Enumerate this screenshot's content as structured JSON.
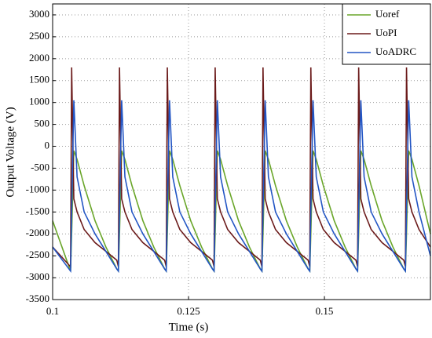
{
  "chart_data": {
    "type": "line",
    "xlabel": "Time (s)",
    "ylabel": "Output Voltage (V)",
    "x": [
      0.1,
      0.1033,
      0.1035,
      0.1039,
      0.1045,
      0.1058,
      0.1078,
      0.1098,
      0.1118,
      0.1121,
      0.1123,
      0.1127,
      0.1133,
      0.1146,
      0.1166,
      0.1186,
      0.1206,
      0.1209,
      0.1211,
      0.1215,
      0.1221,
      0.1234,
      0.1254,
      0.1274,
      0.1294,
      0.1297,
      0.1299,
      0.1303,
      0.1309,
      0.1322,
      0.1342,
      0.1362,
      0.1382,
      0.1385,
      0.1387,
      0.1391,
      0.1397,
      0.141,
      0.143,
      0.145,
      0.147,
      0.1473,
      0.1475,
      0.1479,
      0.1485,
      0.1498,
      0.1518,
      0.1538,
      0.1558,
      0.1561,
      0.1563,
      0.1567,
      0.1573,
      0.1586,
      0.1606,
      0.1626,
      0.1646,
      0.1649,
      0.1651,
      0.1655,
      0.1661,
      0.1674,
      0.1695
    ],
    "series": [
      {
        "name": "Uoref",
        "color": "#6aa62a",
        "values": [
          -1700,
          -2850,
          -2000,
          -100,
          -300,
          -900,
          -1700,
          -2300,
          -2800,
          -2850,
          -2000,
          -100,
          -300,
          -900,
          -1700,
          -2300,
          -2800,
          -2850,
          -2000,
          -100,
          -300,
          -900,
          -1700,
          -2300,
          -2800,
          -2850,
          -2000,
          -100,
          -300,
          -900,
          -1700,
          -2300,
          -2800,
          -2850,
          -2000,
          -100,
          -300,
          -900,
          -1700,
          -2300,
          -2800,
          -2850,
          -2000,
          -100,
          -300,
          -900,
          -1700,
          -2300,
          -2800,
          -2850,
          -2000,
          -100,
          -300,
          -900,
          -1700,
          -2300,
          -2800,
          -2850,
          -2000,
          -100,
          -300,
          -900,
          -2000
        ]
      },
      {
        "name": "UoPI",
        "color": "#6b1a1a",
        "values": [
          -2300,
          -2750,
          1800,
          -1200,
          -1500,
          -1900,
          -2200,
          -2400,
          -2600,
          -2750,
          1800,
          -1200,
          -1500,
          -1900,
          -2200,
          -2400,
          -2600,
          -2750,
          1800,
          -1200,
          -1500,
          -1900,
          -2200,
          -2400,
          -2600,
          -2750,
          1800,
          -1200,
          -1500,
          -1900,
          -2200,
          -2400,
          -2600,
          -2750,
          1800,
          -1200,
          -1500,
          -1900,
          -2200,
          -2400,
          -2600,
          -2750,
          1800,
          -1200,
          -1500,
          -1900,
          -2200,
          -2400,
          -2600,
          -2750,
          1800,
          -1200,
          -1500,
          -1900,
          -2200,
          -2400,
          -2600,
          -2750,
          1800,
          -1200,
          -1500,
          -1900,
          -2300
        ]
      },
      {
        "name": "UoADRC",
        "color": "#2255c4",
        "values": [
          -2300,
          -2850,
          -1500,
          1050,
          -700,
          -1500,
          -2000,
          -2400,
          -2800,
          -2850,
          -1500,
          1050,
          -700,
          -1500,
          -2000,
          -2400,
          -2800,
          -2850,
          -1500,
          1050,
          -700,
          -1500,
          -2000,
          -2400,
          -2800,
          -2850,
          -1500,
          1050,
          -700,
          -1500,
          -2000,
          -2400,
          -2800,
          -2850,
          -1500,
          1050,
          -700,
          -1500,
          -2000,
          -2400,
          -2800,
          -2850,
          -1500,
          1050,
          -700,
          -1500,
          -2000,
          -2400,
          -2800,
          -2850,
          -1500,
          1050,
          -700,
          -1500,
          -2000,
          -2400,
          -2800,
          -2850,
          -1500,
          1050,
          -700,
          -1500,
          -2500
        ]
      }
    ],
    "xlim": [
      0.1,
      0.1695
    ],
    "xticks": [
      0.1,
      0.125,
      0.15
    ],
    "ylim": [
      -3500,
      3250
    ],
    "yticks": [
      3000,
      2500,
      2000,
      1500,
      1000,
      500,
      0,
      -500,
      -1000,
      -1500,
      -2000,
      -2500,
      -3000,
      -3500
    ],
    "grid": true,
    "legend": "upper right"
  }
}
